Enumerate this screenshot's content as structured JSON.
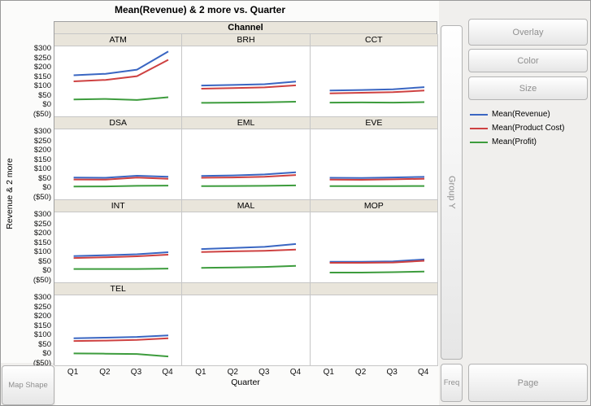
{
  "chart_data": {
    "type": "line",
    "title": "Mean(Revenue) & 2 more vs. Quarter",
    "facet_label": "Channel",
    "xlabel": "Quarter",
    "ylabel": "Revenue & 2 more",
    "x_categories": [
      "Q1",
      "Q2",
      "Q3",
      "Q4"
    ],
    "y_ticks": [
      {
        "label": "$300",
        "value": 300
      },
      {
        "label": "$250",
        "value": 250
      },
      {
        "label": "$200",
        "value": 200
      },
      {
        "label": "$150",
        "value": 150
      },
      {
        "label": "$100",
        "value": 100
      },
      {
        "label": "$50",
        "value": 50
      },
      {
        "label": "$0",
        "value": 0
      },
      {
        "label": "($50)",
        "value": -50
      }
    ],
    "ylim": [
      -50,
      300
    ],
    "grid": {
      "rows": 4,
      "cols": 3
    },
    "legend_position": "right",
    "series": [
      {
        "name": "Mean(Revenue)",
        "color": "#3a66c2"
      },
      {
        "name": "Mean(Product Cost)",
        "color": "#ce4141"
      },
      {
        "name": "Mean(Profit)",
        "color": "#3d9c3d"
      }
    ],
    "panels": [
      {
        "label": "ATM",
        "values": [
          [
            160,
            168,
            190,
            288
          ],
          [
            127,
            135,
            155,
            243
          ],
          [
            30,
            33,
            27,
            42
          ]
        ]
      },
      {
        "label": "BRH",
        "values": [
          [
            105,
            108,
            112,
            126
          ],
          [
            88,
            91,
            95,
            106
          ],
          [
            12,
            13,
            15,
            18
          ]
        ]
      },
      {
        "label": "CCT",
        "values": [
          [
            78,
            81,
            85,
            96
          ],
          [
            63,
            66,
            69,
            78
          ],
          [
            13,
            14,
            13,
            16
          ]
        ]
      },
      {
        "label": "DSA",
        "values": [
          [
            56,
            55,
            66,
            61
          ],
          [
            46,
            45,
            56,
            50
          ],
          [
            8,
            9,
            12,
            13
          ]
        ]
      },
      {
        "label": "EML",
        "values": [
          [
            65,
            68,
            73,
            85
          ],
          [
            55,
            57,
            61,
            70
          ],
          [
            10,
            11,
            12,
            14
          ]
        ]
      },
      {
        "label": "EVE",
        "values": [
          [
            55,
            54,
            57,
            60
          ],
          [
            45,
            44,
            47,
            50
          ],
          [
            10,
            10,
            10,
            11
          ]
        ]
      },
      {
        "label": "INT",
        "values": [
          [
            80,
            85,
            90,
            101
          ],
          [
            70,
            74,
            79,
            88
          ],
          [
            11,
            11,
            11,
            13
          ]
        ]
      },
      {
        "label": "MAL",
        "values": [
          [
            118,
            124,
            130,
            145
          ],
          [
            102,
            106,
            109,
            115
          ],
          [
            17,
            19,
            22,
            28
          ]
        ]
      },
      {
        "label": "MOP",
        "values": [
          [
            50,
            50,
            52,
            62
          ],
          [
            44,
            44,
            46,
            55
          ],
          [
            -8,
            -8,
            -6,
            -3
          ]
        ]
      },
      {
        "label": "TEL",
        "values": [
          [
            85,
            88,
            92,
            100
          ],
          [
            70,
            72,
            76,
            85
          ],
          [
            3,
            2,
            0,
            -13
          ]
        ]
      }
    ]
  },
  "controls": {
    "overlay": "Overlay",
    "color": "Color",
    "size": "Size",
    "group_y": "Group Y",
    "freq": "Freq",
    "page": "Page",
    "map_shape": "Map Shape"
  }
}
